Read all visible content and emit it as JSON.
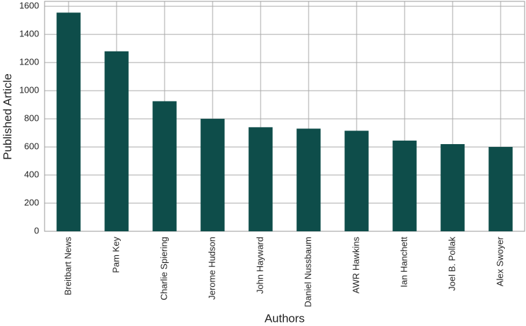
{
  "chart_data": {
    "type": "bar",
    "x_label": "Authors",
    "y_label": "Published Article",
    "categories": [
      "Breitbart News",
      "Pam Key",
      "Charlie Spiering",
      "Jerome Hudson",
      "John Hayward",
      "Daniel Nussbaum",
      "AWR Hawkins",
      "Ian Hanchett",
      "Joel B. Pollak",
      "Alex Swoyer"
    ],
    "values": [
      1555,
      1280,
      925,
      800,
      740,
      730,
      715,
      645,
      620,
      600
    ],
    "color": "#0e4d4a",
    "ylim": [
      0,
      1635
    ],
    "yticks": [
      0,
      200,
      400,
      600,
      800,
      1000,
      1200,
      1400,
      1600
    ],
    "grid": true
  }
}
